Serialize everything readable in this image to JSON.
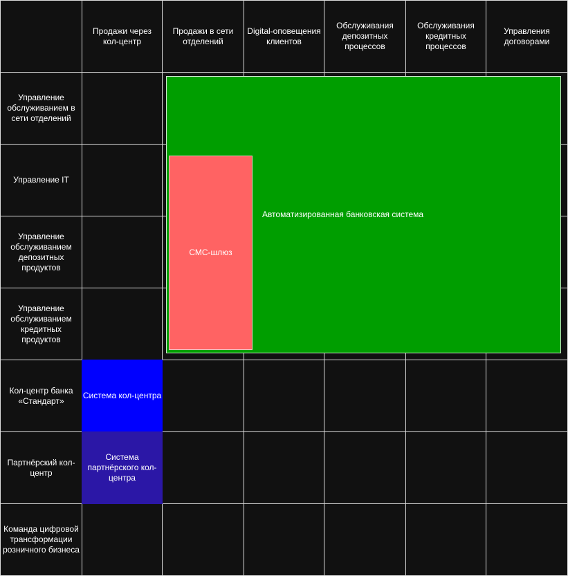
{
  "columns": [
    "Продажи через кол-центр",
    "Продажи в сети отделений",
    "Digital-оповещения клиентов",
    "Обслуживания депозитных процессов",
    "Обслуживания кредитных процессов",
    "Управления договорами"
  ],
  "rows": [
    "Управление обслуживанием в сети отделений",
    "Управление IT",
    "Управление обслуживанием депозитных продуктов",
    "Управление обслуживанием кредитных продуктов",
    "Кол-центр банка «Стандарт»",
    "Партнёрский кол-центр",
    "Команда цифровой трансформации розничного бизнеса"
  ],
  "systems": {
    "abs": "Автоматизированная банковская система",
    "sms": "СМС-шлюз",
    "callcenter": "Система кол-центра",
    "partner": "Система партнёрского кол-центра"
  },
  "colors": {
    "background": "#111111",
    "grid_line": "#dddddd",
    "abs": "#009e00",
    "sms": "#ff6363",
    "callcenter": "#0000ff",
    "partner": "#2b17a6"
  }
}
